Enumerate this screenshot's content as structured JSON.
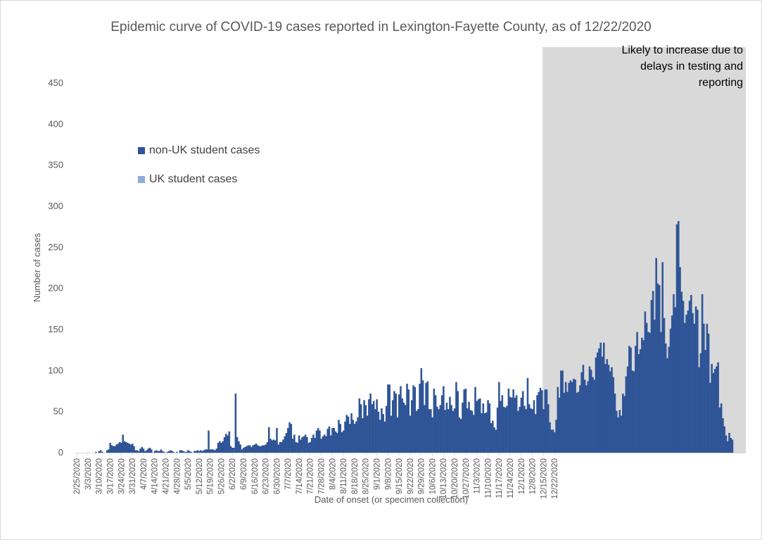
{
  "chart_data": {
    "type": "bar",
    "stacked": true,
    "title": "Epidemic curve of COVID-19 cases reported in Lexington-Fayette County, as of 12/22/2020",
    "xlabel": "Date of onset (or specimen collection)",
    "ylabel": "Number of cases",
    "ylim": [
      0,
      450
    ],
    "yticks": [
      0,
      50,
      100,
      150,
      200,
      250,
      300,
      350,
      400,
      450
    ],
    "grid": false,
    "legend_position": "upper-left",
    "start_date": "2/25/2020",
    "end_date": "12/22/2020",
    "x_tick_labels": [
      "2/25/2020",
      "3/3/2020",
      "3/10/2020",
      "3/17/2020",
      "3/24/2020",
      "3/31/2020",
      "4/7/2020",
      "4/14/2020",
      "4/21/2020",
      "4/28/2020",
      "5/5/2020",
      "5/12/2020",
      "5/19/2020",
      "5/26/2020",
      "6/2/2020",
      "6/9/2020",
      "6/16/2020",
      "6/23/2020",
      "6/30/2020",
      "7/7/2020",
      "7/14/2020",
      "7/21/2020",
      "7/28/2020",
      "8/4/2020",
      "8/11/2020",
      "8/18/2020",
      "8/25/2020",
      "9/1/2020",
      "9/8/2020",
      "9/15/2020",
      "9/22/2020",
      "9/29/2020",
      "10/6/2020",
      "10/13/2020",
      "10/20/2020",
      "10/27/2020",
      "11/3/2020",
      "11/10/2020",
      "11/17/2020",
      "11/24/2020",
      "12/1/2020",
      "12/8/2020",
      "12/15/2020",
      "12/22/2020"
    ],
    "series": [
      {
        "name": "non-UK student cases",
        "color": "#2f5597",
        "values": [
          0,
          0,
          0,
          0,
          0,
          0,
          0,
          0,
          0,
          0,
          0,
          0,
          1,
          0,
          2,
          3,
          1,
          0,
          0,
          3,
          4,
          12,
          9,
          8,
          8,
          10,
          11,
          13,
          12,
          22,
          14,
          13,
          12,
          11,
          10,
          11,
          8,
          3,
          3,
          2,
          5,
          7,
          5,
          2,
          3,
          5,
          6,
          4,
          0,
          2,
          3,
          2,
          2,
          4,
          2,
          1,
          0,
          1,
          2,
          3,
          2,
          1,
          0,
          1,
          0,
          3,
          3,
          2,
          1,
          1,
          3,
          2,
          1,
          0,
          2,
          2,
          3,
          2,
          3,
          2,
          3,
          4,
          4,
          27,
          4,
          4,
          4,
          3,
          5,
          12,
          14,
          12,
          14,
          19,
          23,
          21,
          26,
          8,
          6,
          6,
          72,
          19,
          14,
          10,
          4,
          6,
          7,
          8,
          9,
          9,
          7,
          9,
          10,
          11,
          9,
          8,
          8,
          9,
          9,
          10,
          13,
          31,
          17,
          15,
          16,
          15,
          30,
          10,
          13,
          13,
          16,
          20,
          24,
          30,
          37,
          35,
          17,
          22,
          13,
          12,
          21,
          16,
          19,
          20,
          22,
          19,
          12,
          13,
          18,
          22,
          18,
          27,
          30,
          27,
          17,
          20,
          22,
          20,
          29,
          32,
          21,
          30,
          30,
          26,
          24,
          40,
          35,
          25,
          27,
          38,
          46,
          44,
          35,
          48,
          40,
          35,
          38,
          43,
          66,
          59,
          42,
          64,
          58,
          45,
          65,
          72,
          59,
          63,
          53,
          65,
          50,
          40,
          54,
          47,
          38,
          57,
          83,
          83,
          45,
          64,
          75,
          72,
          43,
          71,
          81,
          66,
          61,
          58,
          84,
          77,
          45,
          64,
          82,
          80,
          51,
          53,
          84,
          103,
          88,
          58,
          85,
          87,
          53,
          53,
          43,
          78,
          70,
          56,
          53,
          58,
          70,
          81,
          52,
          61,
          53,
          68,
          58,
          51,
          54,
          86,
          75,
          43,
          41,
          61,
          77,
          78,
          54,
          62,
          52,
          51,
          46,
          80,
          63,
          65,
          66,
          48,
          60,
          48,
          49,
          64,
          60,
          36,
          39,
          31,
          28,
          55,
          86,
          63,
          70,
          56,
          55,
          57,
          78,
          68,
          67,
          77,
          67,
          70,
          51,
          56,
          67,
          75,
          57,
          53,
          91,
          59,
          54,
          53,
          64,
          47,
          70,
          74,
          79,
          76,
          53,
          77,
          77,
          59,
          37,
          28,
          28,
          25,
          40,
          80,
          67,
          100,
          100,
          73,
          86,
          74,
          85,
          88,
          86,
          90,
          89,
          73,
          74,
          82,
          98,
          107,
          89,
          82,
          87,
          105,
          101,
          92,
          89,
          116,
          122,
          127,
          134,
          117,
          134,
          108,
          114,
          107,
          99,
          104,
          92,
          72,
          51,
          43,
          52,
          45,
          72,
          69,
          93,
          105,
          130,
          128,
          100,
          99,
          130,
          147,
          120,
          126,
          140,
          137,
          172,
          158,
          147,
          146,
          186,
          197,
          162,
          237,
          206,
          204,
          147,
          232,
          164,
          133,
          115,
          129,
          151,
          167,
          193,
          177,
          278,
          282,
          226,
          196,
          185,
          158,
          168,
          173,
          185,
          192,
          170,
          157,
          178,
          174,
          104,
          121,
          193,
          157,
          125,
          157,
          145,
          85,
          108,
          97,
          102,
          105,
          110,
          55,
          60,
          42,
          32,
          21,
          14,
          24,
          18,
          16,
          0,
          0,
          0,
          0,
          0,
          0,
          0,
          0
        ]
      },
      {
        "name": "UK student cases",
        "color": "#8faadc",
        "values": [
          0,
          0,
          0,
          0,
          0,
          0,
          0,
          0,
          0,
          0,
          0,
          0,
          0,
          0,
          0,
          0,
          0,
          0,
          0,
          0,
          0,
          0,
          0,
          0,
          0,
          0,
          0,
          0,
          0,
          0,
          0,
          0,
          0,
          0,
          0,
          0,
          0,
          0,
          0,
          0,
          0,
          0,
          0,
          0,
          0,
          0,
          0,
          0,
          0,
          0,
          0,
          0,
          0,
          0,
          0,
          0,
          0,
          0,
          0,
          0,
          0,
          0,
          0,
          0,
          0,
          0,
          0,
          0,
          0,
          0,
          0,
          0,
          0,
          0,
          0,
          0,
          0,
          0,
          0,
          0,
          0,
          0,
          0,
          0,
          0,
          0,
          0,
          0,
          0,
          0,
          0,
          0,
          0,
          0,
          0,
          0,
          0,
          0,
          0,
          0,
          0,
          0,
          0,
          0,
          0,
          0,
          0,
          0,
          0,
          0,
          0,
          0,
          0,
          0,
          0,
          0,
          0,
          0,
          0,
          0,
          0,
          0,
          0,
          0,
          0,
          0,
          0,
          0,
          0,
          0,
          0,
          0,
          0,
          0,
          0,
          0,
          0,
          0,
          0,
          0,
          0,
          0,
          0,
          0,
          0,
          0,
          0,
          0,
          0,
          0,
          0,
          0,
          0,
          0,
          0,
          0,
          0,
          0,
          0,
          0,
          0,
          0,
          0,
          0,
          0,
          0,
          0,
          0,
          0,
          0,
          0,
          0,
          0,
          0,
          0,
          0,
          0,
          0,
          0,
          0,
          0,
          0,
          0,
          0,
          0,
          0,
          0,
          0,
          0,
          0,
          0,
          0,
          0,
          0,
          0,
          0,
          0,
          0,
          0,
          0,
          0,
          0,
          0,
          0,
          0,
          0,
          0,
          0,
          0,
          0,
          0,
          0,
          0,
          0,
          0,
          0,
          0,
          0,
          0,
          0,
          0,
          0,
          0,
          0,
          0,
          0,
          0,
          0,
          0,
          0,
          0,
          0,
          0,
          0,
          0,
          0,
          0,
          0,
          0,
          0,
          0,
          0,
          0,
          0,
          0,
          0,
          0,
          0,
          0,
          0,
          0,
          0,
          0,
          0,
          0,
          0,
          0,
          0,
          0,
          0,
          0,
          0,
          0,
          0,
          0,
          0,
          0,
          0,
          0,
          0,
          0,
          0,
          0,
          0,
          0,
          0,
          0,
          0,
          0,
          0,
          0,
          0,
          0,
          0,
          0,
          0,
          0,
          0,
          0,
          0,
          0,
          0,
          0,
          0,
          0,
          0,
          0,
          0,
          0,
          0,
          0,
          0,
          0,
          0,
          0,
          0,
          0,
          0,
          0,
          0,
          0,
          0,
          0,
          0,
          0,
          0,
          0,
          0,
          0,
          0,
          0,
          0,
          0,
          0,
          0,
          0,
          0,
          0,
          0,
          0,
          0,
          0,
          0,
          0,
          0,
          0,
          0,
          0,
          0,
          0,
          0,
          0,
          0,
          0,
          0,
          0,
          0,
          0,
          0,
          0,
          0,
          0,
          0,
          0,
          0,
          0,
          0,
          0,
          0,
          0,
          0,
          0,
          0,
          0,
          0,
          0,
          0,
          0,
          0,
          0,
          0,
          0,
          0,
          0,
          0,
          0,
          0,
          0,
          0,
          0,
          0,
          0,
          0,
          0,
          0,
          0,
          0,
          0,
          0,
          0,
          0,
          0,
          0,
          0,
          0,
          0,
          0,
          0,
          0,
          0,
          0,
          0,
          0,
          0,
          0,
          0,
          0,
          0,
          0,
          0,
          0,
          0,
          0,
          0,
          0,
          0,
          0,
          0,
          0,
          0,
          0,
          0,
          0,
          0,
          0,
          0,
          0,
          0,
          0,
          0,
          0,
          0,
          0,
          0,
          0,
          0,
          0,
          0,
          0,
          0,
          0,
          0,
          0,
          0,
          0,
          0,
          0,
          0,
          0,
          0,
          0,
          0,
          0,
          0
        ]
      }
    ],
    "shaded_region": {
      "from_date": "12/15/2020",
      "to_date": "12/22/2020",
      "color": "#d9d9d9"
    },
    "annotation": "Likely to increase due to delays in testing and reporting"
  }
}
